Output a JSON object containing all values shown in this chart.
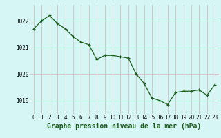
{
  "x": [
    0,
    1,
    2,
    3,
    4,
    5,
    6,
    7,
    8,
    9,
    10,
    11,
    12,
    13,
    14,
    15,
    16,
    17,
    18,
    19,
    20,
    21,
    22,
    23
  ],
  "y": [
    1021.7,
    1022.0,
    1022.2,
    1021.9,
    1021.7,
    1021.4,
    1021.2,
    1021.1,
    1020.55,
    1020.7,
    1020.7,
    1020.65,
    1020.6,
    1020.0,
    1019.65,
    1019.1,
    1019.0,
    1018.85,
    1019.3,
    1019.35,
    1019.35,
    1019.4,
    1019.2,
    1019.6
  ],
  "line_color": "#1a5c1a",
  "marker_color": "#1a5c1a",
  "background_color": "#d6f5f5",
  "grid_color": "#c8c0c0",
  "xlabel": "Graphe pression niveau de la mer (hPa)",
  "xlabel_color": "#1a5c1a",
  "ylim": [
    1018.5,
    1022.6
  ],
  "yticks": [
    1019,
    1020,
    1021,
    1022
  ],
  "xticks": [
    0,
    1,
    2,
    3,
    4,
    5,
    6,
    7,
    8,
    9,
    10,
    11,
    12,
    13,
    14,
    15,
    16,
    17,
    18,
    19,
    20,
    21,
    22,
    23
  ],
  "tick_fontsize": 5.5,
  "xlabel_fontsize": 7.0,
  "figsize": [
    3.2,
    2.0
  ],
  "dpi": 100
}
